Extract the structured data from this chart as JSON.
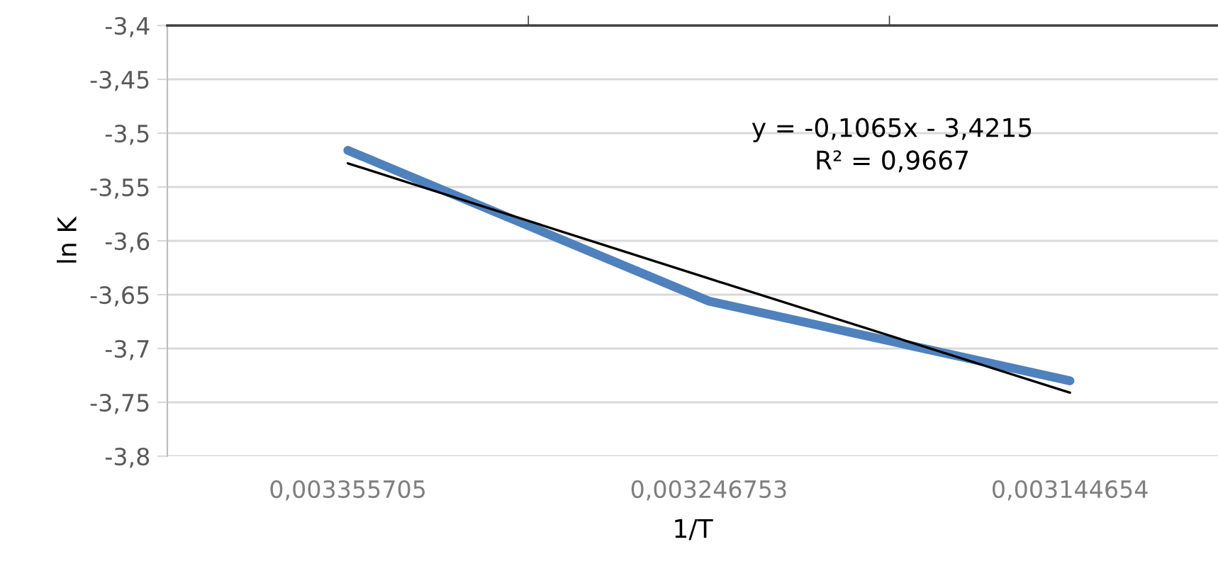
{
  "chart_data": {
    "type": "line",
    "xlabel": "1/T",
    "ylabel": "ln K",
    "categories": [
      "0,003355705",
      "0,003246753",
      "0,003144654"
    ],
    "series": [
      {
        "color": "#4f81bd",
        "values": [
          -3.516,
          -3.656,
          -3.73
        ]
      },
      {
        "type": "line",
        "color": "#000000",
        "values": [
          -3.528,
          -3.635,
          -3.741
        ]
      }
    ],
    "ylim": [
      -3.8,
      -3.4
    ],
    "yticks": [
      {
        "value": -3.8,
        "label": "-3,8"
      },
      {
        "value": -3.75,
        "label": "-3,75"
      },
      {
        "value": -3.7,
        "label": "-3,7"
      },
      {
        "value": -3.65,
        "label": "-3,65"
      },
      {
        "value": -3.6,
        "label": "-3,6"
      },
      {
        "value": -3.55,
        "label": "-3,55"
      },
      {
        "value": -3.5,
        "label": "-3,5"
      },
      {
        "value": -3.45,
        "label": "-3,45"
      },
      {
        "value": -3.4,
        "label": "-3,4"
      }
    ],
    "annotations": [
      "y = -0,1065x - 3,4215",
      "R² = 0,9667"
    ],
    "grid": "y",
    "legend": false
  }
}
